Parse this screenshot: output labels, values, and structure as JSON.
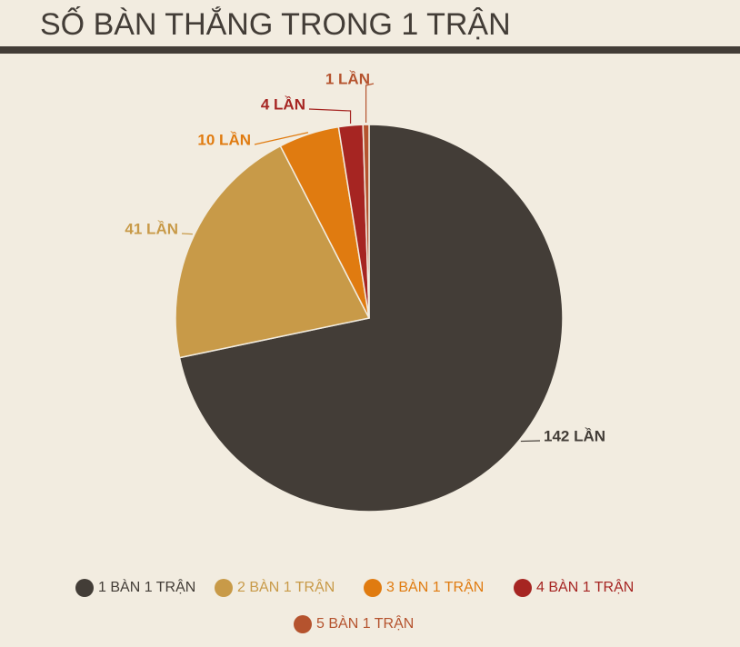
{
  "chart_data": {
    "type": "pie",
    "title": "SỐ BÀN THẮNG TRONG 1 TRẬN",
    "categories": [
      "1 BÀN 1 TRẬN",
      "2 BÀN 1 TRẬN",
      "3 BÀN 1 TRẬN",
      "4 BÀN 1 TRẬN",
      "5 BÀN 1 TRẬN"
    ],
    "values": [
      142,
      41,
      10,
      4,
      1
    ],
    "value_labels": [
      "142 LẦN",
      "41 LẦN",
      "10 LẦN",
      "4 LẦN",
      "1 LẦN"
    ],
    "colors": [
      "#433d37",
      "#c89a48",
      "#e07b10",
      "#a62522",
      "#b5532e"
    ],
    "legend": "bottom"
  }
}
